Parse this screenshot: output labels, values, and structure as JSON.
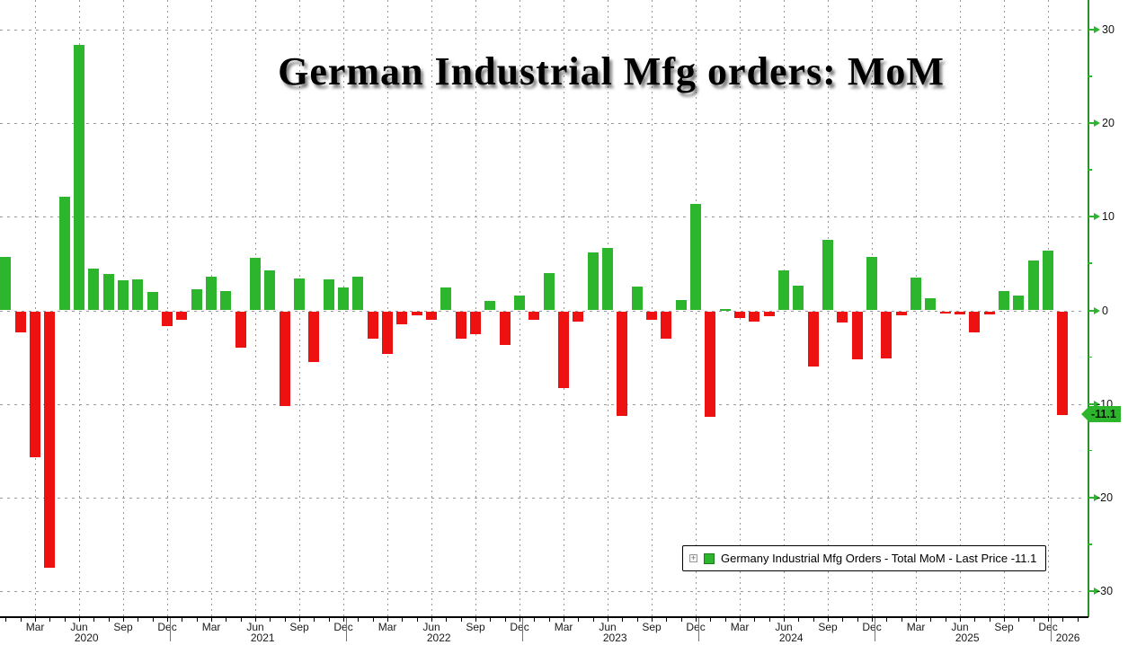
{
  "title": "German Industrial Mfg orders: MoM",
  "legend": {
    "expand_icon": "plus-box",
    "label": "Germany Industrial Mfg Orders - Total MoM - Last Price -11.1"
  },
  "y_axis": {
    "side": "right",
    "tick_labels": [
      "30",
      "20",
      "10",
      "0",
      "-10",
      "-20",
      "-30"
    ],
    "tick_values": [
      30,
      20,
      10,
      0,
      -10,
      -20,
      -30
    ],
    "minor_tick_values": [
      25,
      15,
      5,
      -5,
      -15,
      -25
    ],
    "last_price_badge": {
      "label": "-11.1",
      "value": -11.1
    }
  },
  "x_axis": {
    "quarter_month_names": {
      "3": "Mar",
      "6": "Jun",
      "9": "Sep",
      "12": "Dec"
    },
    "year_labels": [
      "2020",
      "2021",
      "2022",
      "2023",
      "2024",
      "2025",
      "2026"
    ]
  },
  "colors": {
    "positive_bar": "#2eb52e",
    "negative_bar": "#ee1111",
    "axis_line_green": "#2a8f2a",
    "tick_arrow_green": "#2eb52e",
    "badge_bg": "#2eb52e",
    "badge_text": "#001500",
    "x_axis_line": "#000000",
    "gridline": "#999999",
    "label_text": "#1a1a1a",
    "background": "#ffffff"
  },
  "chart_data": {
    "type": "bar",
    "title": "German Industrial Mfg orders: MoM",
    "series_name": "Germany Industrial Mfg Orders - Total MoM",
    "unit": "percent, month-over-month",
    "last_price": -11.1,
    "ylim": [
      -32.7,
      33.2
    ],
    "yticks": [
      30,
      20,
      10,
      0,
      -10,
      -20,
      -30
    ],
    "ytick_minor_step": 5,
    "grid": true,
    "legend_position": "bottom-right",
    "x": [
      "2020-01",
      "2020-02",
      "2020-03",
      "2020-04",
      "2020-05",
      "2020-06",
      "2020-07",
      "2020-08",
      "2020-09",
      "2020-10",
      "2020-11",
      "2020-12",
      "2021-01",
      "2021-02",
      "2021-03",
      "2021-04",
      "2021-05",
      "2021-06",
      "2021-07",
      "2021-08",
      "2021-09",
      "2021-10",
      "2021-11",
      "2021-12",
      "2022-01",
      "2022-02",
      "2022-03",
      "2022-04",
      "2022-05",
      "2022-06",
      "2022-07",
      "2022-08",
      "2022-09",
      "2022-10",
      "2022-11",
      "2022-12",
      "2023-01",
      "2023-02",
      "2023-03",
      "2023-04",
      "2023-05",
      "2023-06",
      "2023-07",
      "2023-08",
      "2023-09",
      "2023-10",
      "2023-11",
      "2023-12",
      "2024-01",
      "2024-02",
      "2024-03",
      "2024-04",
      "2024-05",
      "2024-06",
      "2024-07",
      "2024-08",
      "2024-09",
      "2024-10",
      "2024-11",
      "2024-12",
      "2025-01",
      "2025-02",
      "2025-03",
      "2025-04",
      "2025-05",
      "2025-06",
      "2025-07",
      "2025-08",
      "2025-09",
      "2025-10",
      "2025-11",
      "2025-12",
      "2026-01"
    ],
    "values": [
      5.7,
      -2.3,
      -15.6,
      -27.4,
      12.1,
      28.4,
      4.5,
      3.9,
      3.2,
      3.3,
      2.0,
      -1.6,
      -0.9,
      2.3,
      3.6,
      2.1,
      -3.9,
      5.6,
      4.3,
      -10.1,
      3.4,
      -5.4,
      3.3,
      2.4,
      3.6,
      -2.9,
      -4.6,
      -1.4,
      -0.4,
      -0.9,
      2.4,
      -2.9,
      -2.4,
      1.0,
      -3.6,
      1.6,
      -0.9,
      4.0,
      -8.2,
      -1.1,
      6.2,
      6.7,
      -11.2,
      2.5,
      -0.9,
      -2.9,
      1.1,
      11.4,
      -11.3,
      0.1,
      -0.7,
      -1.1,
      -0.5,
      4.3,
      2.6,
      -5.9,
      7.5,
      -1.2,
      -5.1,
      5.7,
      -5.0,
      -0.4,
      3.5,
      1.3,
      -0.2,
      -0.3,
      -2.3,
      -0.3,
      2.1,
      1.6,
      5.3,
      6.4,
      -11.1
    ]
  }
}
